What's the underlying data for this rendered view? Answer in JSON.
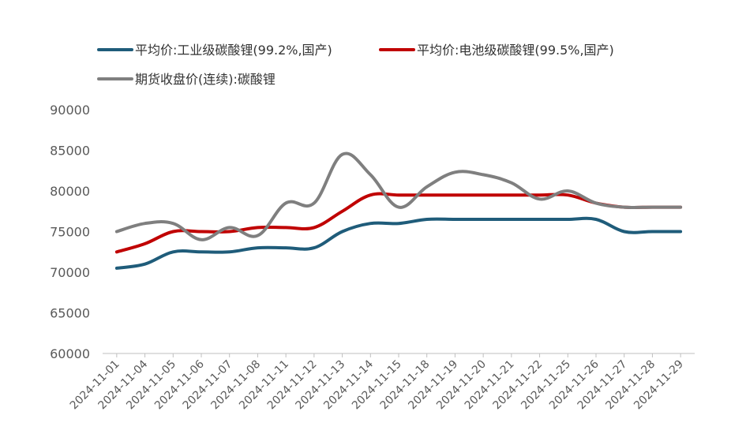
{
  "chart_data": {
    "type": "line",
    "title": "",
    "xlabel": "",
    "ylabel": "",
    "ylim": [
      60000,
      90000
    ],
    "yticks": [
      60000,
      65000,
      70000,
      75000,
      80000,
      85000,
      90000
    ],
    "grid": false,
    "legend_position": "top",
    "categories": [
      "2024-11-01",
      "2024-11-04",
      "2024-11-05",
      "2024-11-06",
      "2024-11-07",
      "2024-11-08",
      "2024-11-11",
      "2024-11-12",
      "2024-11-13",
      "2024-11-14",
      "2024-11-15",
      "2024-11-18",
      "2024-11-19",
      "2024-11-20",
      "2024-11-21",
      "2024-11-22",
      "2024-11-25",
      "2024-11-26",
      "2024-11-27",
      "2024-11-28",
      "2024-11-29"
    ],
    "series": [
      {
        "name": "平均价:工业级碳酸锂(99.2%,国产)",
        "color": "#1f5c7a",
        "values": [
          70500,
          71000,
          72500,
          72500,
          72500,
          73000,
          73000,
          73000,
          75000,
          76000,
          76000,
          76500,
          76500,
          76500,
          76500,
          76500,
          76500,
          76500,
          75000,
          75000,
          75000
        ]
      },
      {
        "name": "平均价:电池级碳酸锂(99.5%,国产)",
        "color": "#c00000",
        "values": [
          72500,
          73500,
          75000,
          75000,
          75000,
          75500,
          75500,
          75500,
          77500,
          79500,
          79500,
          79500,
          79500,
          79500,
          79500,
          79500,
          79500,
          78500,
          78000,
          78000,
          78000
        ]
      },
      {
        "name": "期货收盘价(连续):碳酸锂",
        "color": "#7f7f7f",
        "values": [
          75000,
          76000,
          76000,
          74000,
          75500,
          74500,
          78500,
          78500,
          84500,
          82000,
          78000,
          80500,
          82300,
          82000,
          81000,
          79000,
          80000,
          78500,
          78000,
          78000,
          78000
        ]
      }
    ]
  }
}
